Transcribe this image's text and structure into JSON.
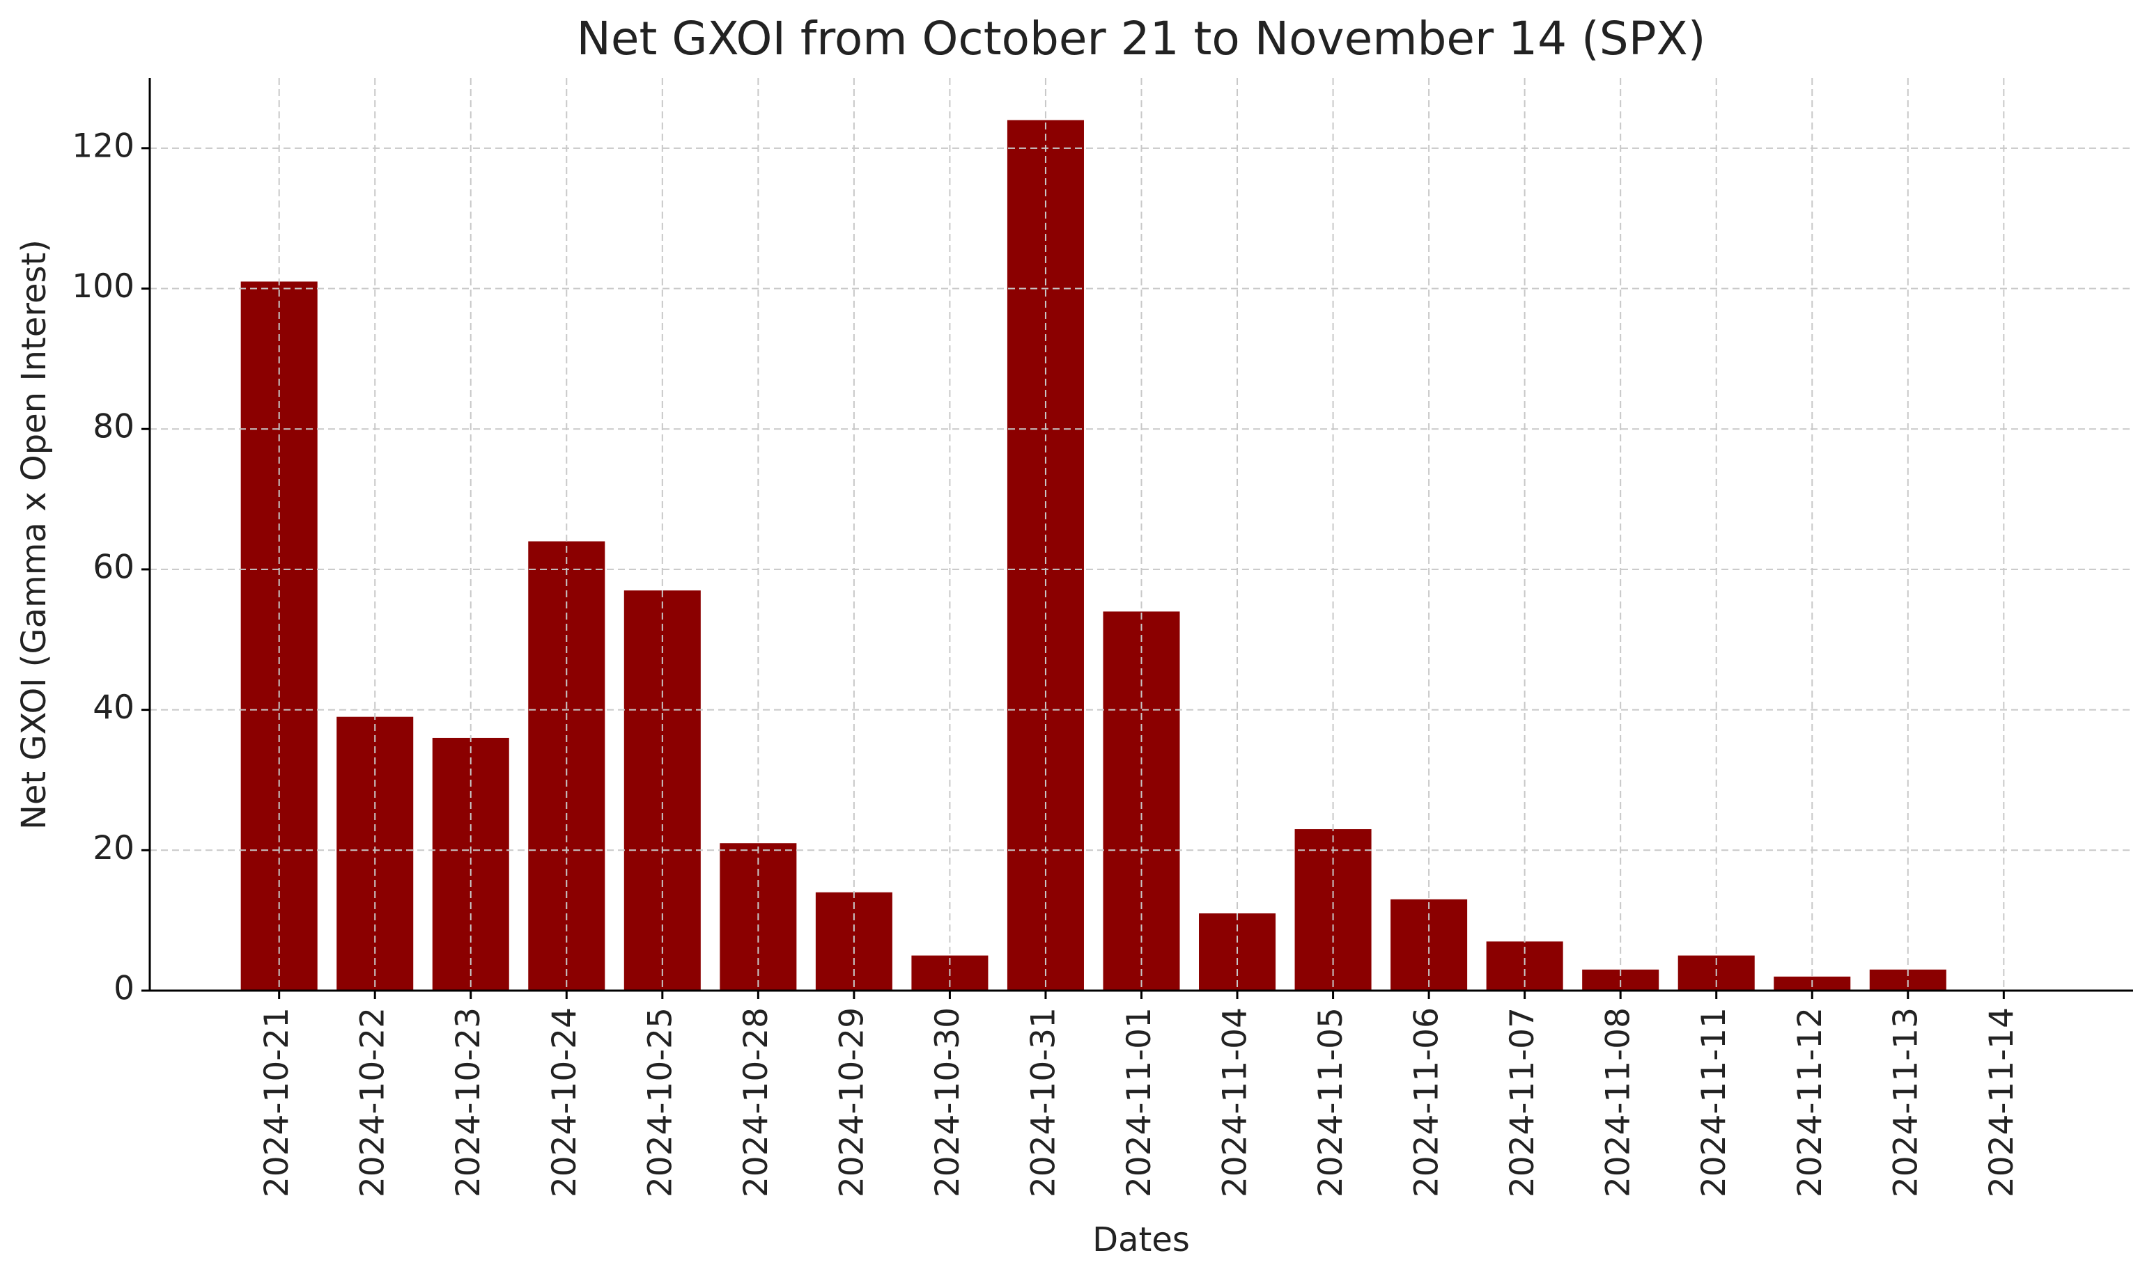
{
  "chart_data": {
    "type": "bar",
    "title": "Net GXOI from October 21 to November 14 (SPX)",
    "x_label": "Dates",
    "y_label": "Net GXOI (Gamma x Open Interest)",
    "categories": [
      "2024-10-21",
      "2024-10-22",
      "2024-10-23",
      "2024-10-24",
      "2024-10-25",
      "2024-10-28",
      "2024-10-29",
      "2024-10-30",
      "2024-10-31",
      "2024-11-01",
      "2024-11-04",
      "2024-11-05",
      "2024-11-06",
      "2024-11-07",
      "2024-11-08",
      "2024-11-11",
      "2024-11-12",
      "2024-11-13",
      "2024-11-14"
    ],
    "values": [
      101,
      39,
      36,
      64,
      57,
      21,
      14,
      5,
      124,
      54,
      11,
      23,
      13,
      7,
      3,
      5,
      2,
      3,
      0
    ],
    "color": "#8b0000",
    "ylim": [
      0,
      130
    ],
    "yticks": [
      0,
      20,
      40,
      60,
      80,
      100,
      120
    ],
    "grid": true
  }
}
